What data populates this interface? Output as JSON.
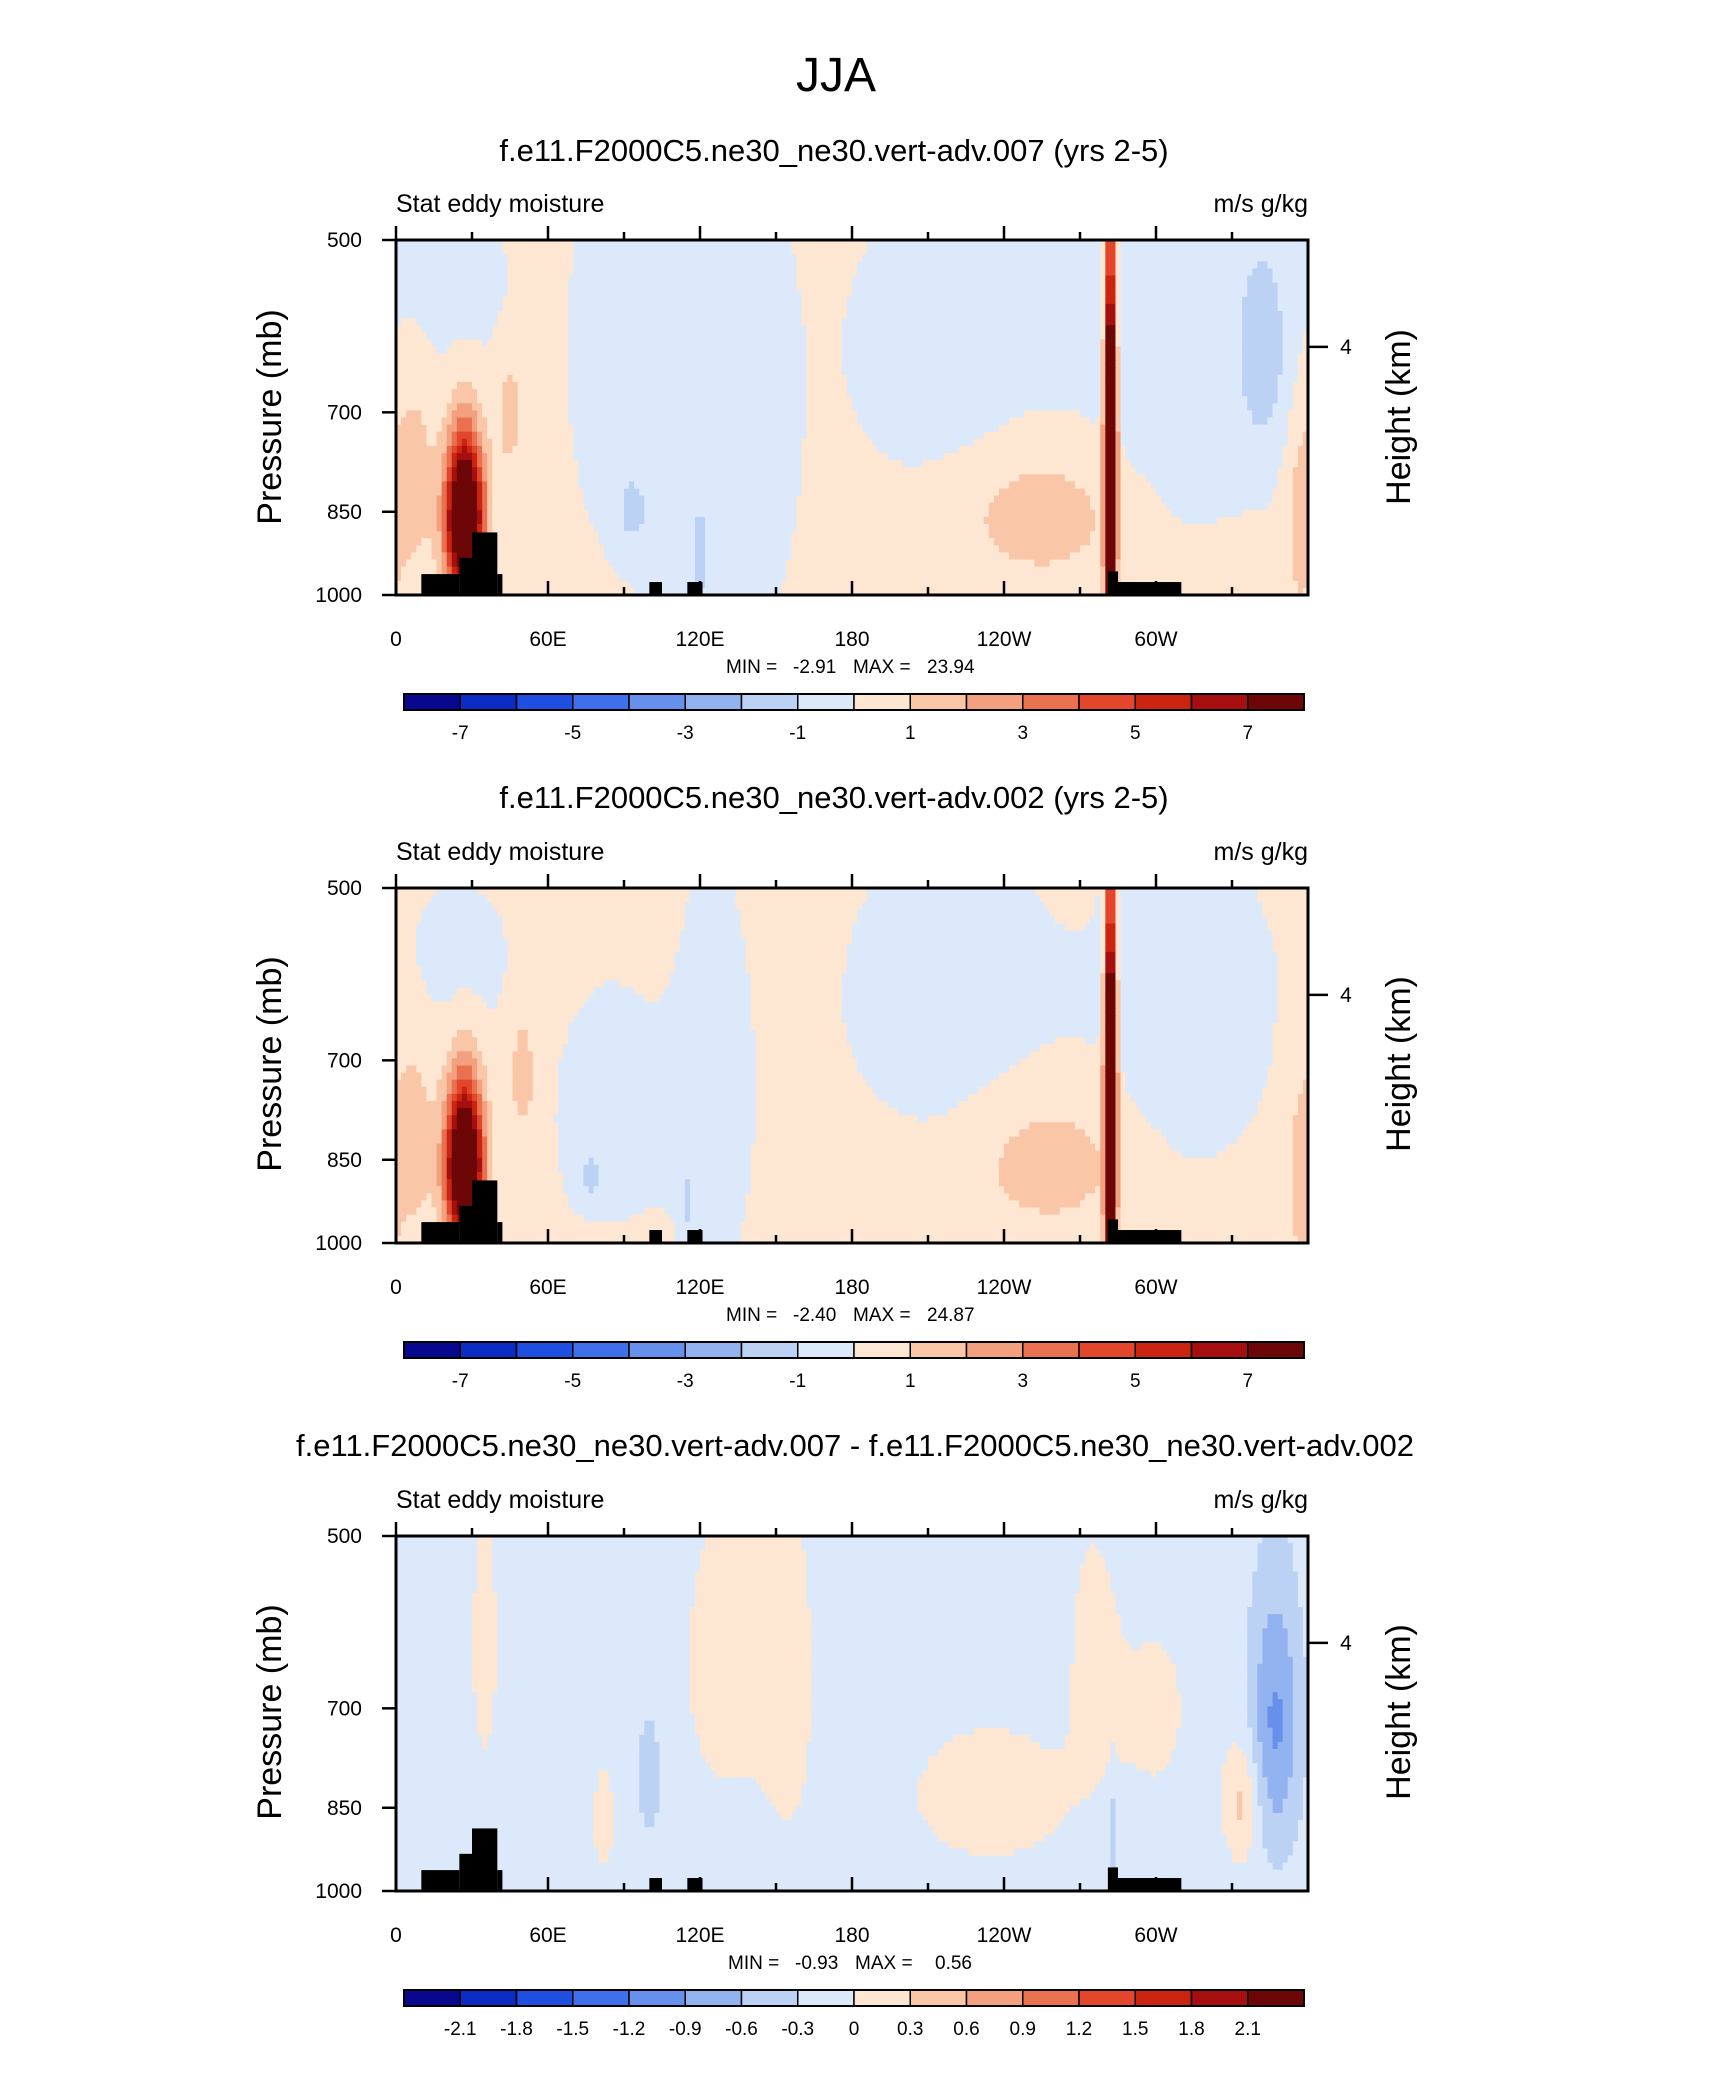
{
  "figure_title": "JJA",
  "chart_data": [
    {
      "type": "heatmap",
      "title": "f.e11.F2000C5.ne30_ne30.vert-adv.007 (yrs 2-5)",
      "left_string": "Stat eddy moisture",
      "right_string": "m/s g/kg",
      "ylabel": "Pressure (mb)",
      "ylabel_right": "Height (km)",
      "yticks": [
        "500",
        "700",
        "850",
        "1000"
      ],
      "yticks_right": [
        "4"
      ],
      "xticks": [
        "0",
        "60E",
        "120E",
        "180",
        "120W",
        "60W"
      ],
      "xlim": [
        0,
        360
      ],
      "ylim": [
        1000,
        500
      ],
      "min_label": "MIN =",
      "min_value": "-2.91",
      "max_label": "MAX =",
      "max_value": "23.94",
      "colorbar_ticks": [
        "-7",
        "-5",
        "-3",
        "-1",
        "1",
        "3",
        "5",
        "7"
      ],
      "colorbar_levels": [
        -8,
        -7,
        -6,
        -5,
        -4,
        -3,
        -2,
        -1,
        0,
        1,
        2,
        3,
        4,
        5,
        6,
        7,
        8
      ],
      "field": {
        "background": 0.2,
        "blobs": [
          {
            "lon": 27,
            "p": 860,
            "rlon": 5,
            "rp": 90,
            "v": 12
          },
          {
            "lon": 7,
            "p": 800,
            "rlon": 6,
            "rp": 110,
            "v": 1.4
          },
          {
            "lon": 45,
            "p": 700,
            "rlon": 4,
            "rp": 60,
            "v": 1.3
          },
          {
            "lon": 22,
            "p": 560,
            "rlon": 18,
            "rp": 70,
            "v": -0.5
          },
          {
            "lon": 95,
            "p": 640,
            "rlon": 18,
            "rp": 200,
            "v": -0.6
          },
          {
            "lon": 93,
            "p": 850,
            "rlon": 4,
            "rp": 40,
            "v": -1.3
          },
          {
            "lon": 120,
            "p": 720,
            "rlon": 15,
            "rp": 260,
            "v": -0.55
          },
          {
            "lon": 120,
            "p": 930,
            "rlon": 2,
            "rp": 60,
            "v": -1.3
          },
          {
            "lon": 145,
            "p": 720,
            "rlon": 10,
            "rp": 200,
            "v": -0.5
          },
          {
            "lon": 218,
            "p": 620,
            "rlon": 28,
            "rp": 120,
            "v": -0.6
          },
          {
            "lon": 255,
            "p": 860,
            "rlon": 20,
            "rp": 70,
            "v": 1.6
          },
          {
            "lon": 282,
            "p": 780,
            "rlon": 1.5,
            "rp": 200,
            "v": 16
          },
          {
            "lon": 282,
            "p": 560,
            "rlon": 2,
            "rp": 60,
            "v": -1.2
          },
          {
            "lon": 308,
            "p": 620,
            "rlon": 28,
            "rp": 180,
            "v": -0.6
          },
          {
            "lon": 342,
            "p": 620,
            "rlon": 7,
            "rp": 90,
            "v": -1.7
          },
          {
            "lon": 357,
            "p": 880,
            "rlon": 4,
            "rp": 120,
            "v": 1.2
          }
        ]
      }
    },
    {
      "type": "heatmap",
      "title": "f.e11.F2000C5.ne30_ne30.vert-adv.002 (yrs 2-5)",
      "left_string": "Stat eddy moisture",
      "right_string": "m/s g/kg",
      "ylabel": "Pressure (mb)",
      "ylabel_right": "Height (km)",
      "yticks": [
        "500",
        "700",
        "850",
        "1000"
      ],
      "yticks_right": [
        "4"
      ],
      "xticks": [
        "0",
        "60E",
        "120E",
        "180",
        "120W",
        "60W"
      ],
      "xlim": [
        0,
        360
      ],
      "ylim": [
        1000,
        500
      ],
      "min_label": "MIN =",
      "min_value": "-2.40",
      "max_label": "MAX =",
      "max_value": "24.87",
      "colorbar_ticks": [
        "-7",
        "-5",
        "-3",
        "-1",
        "1",
        "3",
        "5",
        "7"
      ],
      "colorbar_levels": [
        -8,
        -7,
        -6,
        -5,
        -4,
        -3,
        -2,
        -1,
        0,
        1,
        2,
        3,
        4,
        5,
        6,
        7,
        8
      ],
      "field": {
        "background": 0.2,
        "blobs": [
          {
            "lon": 27,
            "p": 860,
            "rlon": 5,
            "rp": 90,
            "v": 12
          },
          {
            "lon": 7,
            "p": 820,
            "rlon": 6,
            "rp": 110,
            "v": 1.4
          },
          {
            "lon": 50,
            "p": 720,
            "rlon": 4,
            "rp": 70,
            "v": 1.3
          },
          {
            "lon": 25,
            "p": 580,
            "rlon": 15,
            "rp": 60,
            "v": -0.5
          },
          {
            "lon": 85,
            "p": 780,
            "rlon": 15,
            "rp": 120,
            "v": -0.6
          },
          {
            "lon": 77,
            "p": 880,
            "rlon": 4,
            "rp": 30,
            "v": -1.2
          },
          {
            "lon": 125,
            "p": 760,
            "rlon": 12,
            "rp": 220,
            "v": -0.5
          },
          {
            "lon": 115,
            "p": 930,
            "rlon": 2,
            "rp": 50,
            "v": -1.2
          },
          {
            "lon": 218,
            "p": 620,
            "rlon": 28,
            "rp": 120,
            "v": -0.6
          },
          {
            "lon": 258,
            "p": 860,
            "rlon": 18,
            "rp": 70,
            "v": 1.6
          },
          {
            "lon": 282,
            "p": 780,
            "rlon": 1.5,
            "rp": 200,
            "v": 16
          },
          {
            "lon": 282,
            "p": 560,
            "rlon": 2,
            "rp": 60,
            "v": -1.2
          },
          {
            "lon": 312,
            "p": 640,
            "rlon": 26,
            "rp": 160,
            "v": -0.5
          },
          {
            "lon": 357,
            "p": 880,
            "rlon": 4,
            "rp": 120,
            "v": 1.2
          }
        ]
      }
    },
    {
      "type": "heatmap",
      "title": "f.e11.F2000C5.ne30_ne30.vert-adv.007 - f.e11.F2000C5.ne30_ne30.vert-adv.002",
      "left_string": "Stat eddy moisture",
      "right_string": "m/s g/kg",
      "ylabel": "Pressure (mb)",
      "ylabel_right": "Height (km)",
      "yticks": [
        "500",
        "700",
        "850",
        "1000"
      ],
      "yticks_right": [
        "4"
      ],
      "xticks": [
        "0",
        "60E",
        "120E",
        "180",
        "120W",
        "60W"
      ],
      "xlim": [
        0,
        360
      ],
      "ylim": [
        1000,
        500
      ],
      "min_label": "MIN =",
      "min_value": "-0.93",
      "max_label": "MAX =",
      "max_value": "0.56",
      "colorbar_ticks": [
        "-2.1",
        "-1.8",
        "-1.5",
        "-1.2",
        "-0.9",
        "-0.6",
        "-0.3",
        "0",
        "0.3",
        "0.6",
        "0.9",
        "1.2",
        "1.5",
        "1.8",
        "2.1"
      ],
      "colorbar_levels": [
        -2.4,
        -2.1,
        -1.8,
        -1.5,
        -1.2,
        -0.9,
        -0.6,
        -0.3,
        0,
        0.3,
        0.6,
        0.9,
        1.2,
        1.5,
        1.8,
        2.1,
        2.4
      ],
      "field": {
        "background": -0.15,
        "blobs": [
          {
            "lon": 35,
            "p": 620,
            "rlon": 3,
            "rp": 90,
            "v": 0.45
          },
          {
            "lon": 100,
            "p": 800,
            "rlon": 3,
            "rp": 60,
            "v": -0.45
          },
          {
            "lon": 82,
            "p": 870,
            "rlon": 3,
            "rp": 60,
            "v": 0.35
          },
          {
            "lon": 130,
            "p": 640,
            "rlon": 14,
            "rp": 160,
            "v": 0.25
          },
          {
            "lon": 155,
            "p": 660,
            "rlon": 8,
            "rp": 180,
            "v": 0.25
          },
          {
            "lon": 235,
            "p": 830,
            "rlon": 26,
            "rp": 90,
            "v": 0.28
          },
          {
            "lon": 275,
            "p": 620,
            "rlon": 8,
            "rp": 120,
            "v": 0.22
          },
          {
            "lon": 283,
            "p": 900,
            "rlon": 1.2,
            "rp": 60,
            "v": -0.5
          },
          {
            "lon": 334,
            "p": 840,
            "rlon": 5,
            "rp": 70,
            "v": 0.55
          },
          {
            "lon": 347,
            "p": 720,
            "rlon": 7,
            "rp": 130,
            "v": -0.8
          },
          {
            "lon": 300,
            "p": 700,
            "rlon": 12,
            "rp": 110,
            "v": 0.2
          }
        ]
      }
    }
  ],
  "topography": {
    "bars": [
      {
        "lon0": 10,
        "lon1": 25,
        "p_top": 960
      },
      {
        "lon0": 25,
        "lon1": 30,
        "p_top": 930
      },
      {
        "lon0": 30,
        "lon1": 40,
        "p_top": 885
      },
      {
        "lon0": 40,
        "lon1": 42,
        "p_top": 960
      },
      {
        "lon0": 100,
        "lon1": 105,
        "p_top": 975
      },
      {
        "lon0": 115,
        "lon1": 121,
        "p_top": 975
      },
      {
        "lon0": 281,
        "lon1": 285,
        "p_top": 955
      },
      {
        "lon0": 285,
        "lon1": 310,
        "p_top": 975
      }
    ]
  },
  "colormap": [
    "#08088f",
    "#0b2dc4",
    "#1f4fe0",
    "#3f6fe9",
    "#6690ec",
    "#93b3f0",
    "#bcd2f5",
    "#dbe9fb",
    "#fde6d2",
    "#f9c6a8",
    "#f2a07e",
    "#e9714f",
    "#e2462b",
    "#cb2410",
    "#a50f0f",
    "#6d0707"
  ],
  "nan_color": "#ffffff",
  "topo_color": "#000000"
}
